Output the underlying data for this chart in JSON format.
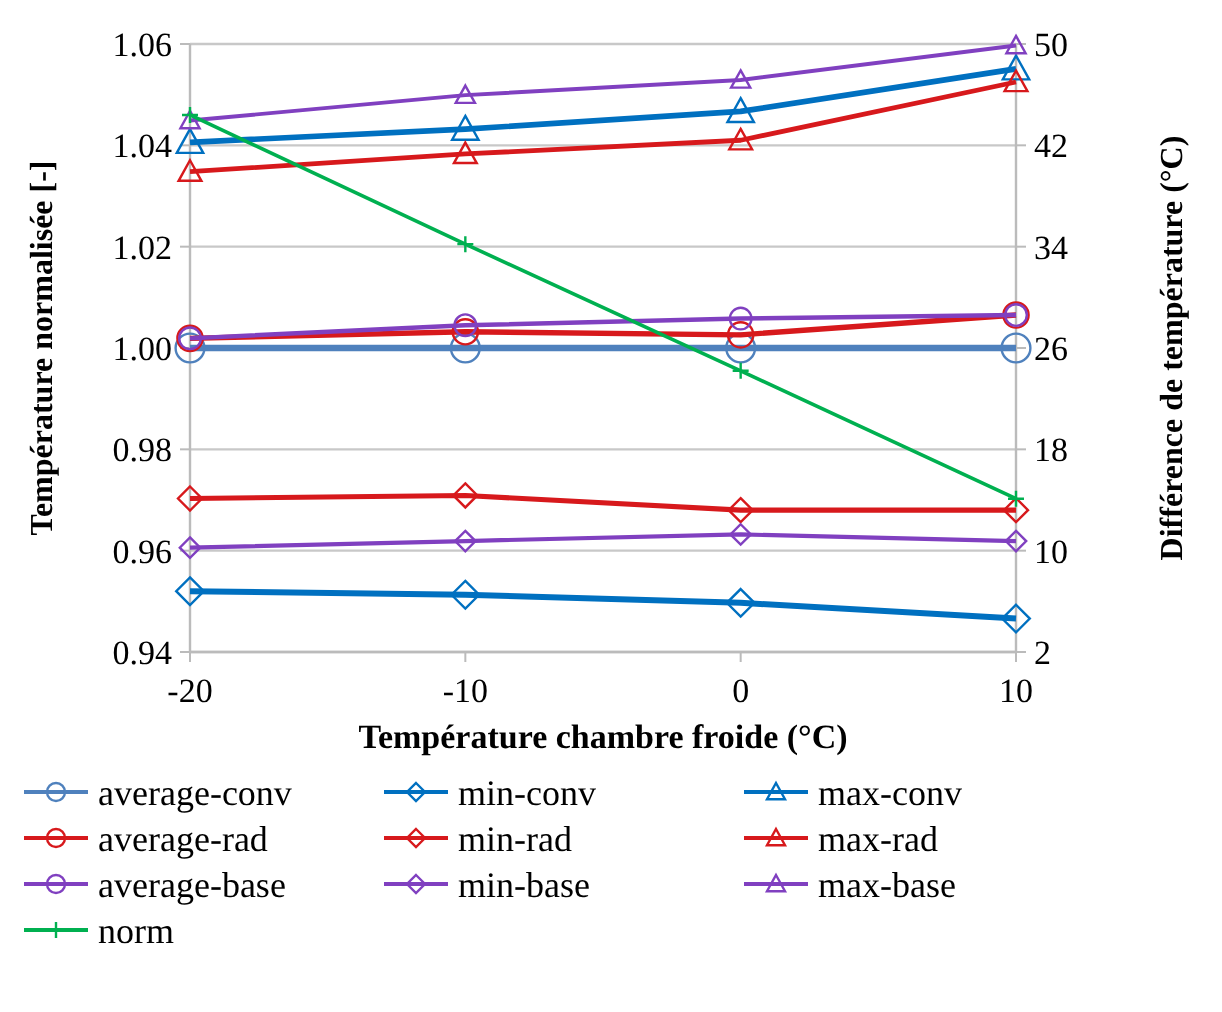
{
  "chart_data": {
    "type": "line",
    "xlabel": "Température chambre froide (°C)",
    "ylabel": "Température normalisée [-]",
    "y2label": "Différence de température (°C)",
    "x": [
      -20,
      -10,
      0,
      10
    ],
    "xlim": [
      -20,
      10
    ],
    "xticks": [
      -20,
      -10,
      0,
      10
    ],
    "ylim": [
      0.94,
      1.06
    ],
    "yticks": [
      {
        "value": 0.94,
        "label": "0.94"
      },
      {
        "value": 0.96,
        "label": "0.96"
      },
      {
        "value": 0.98,
        "label": "0.98"
      },
      {
        "value": 1.0,
        "label": "1.00"
      },
      {
        "value": 1.02,
        "label": "1.02"
      },
      {
        "value": 1.04,
        "label": "1.04"
      },
      {
        "value": 1.06,
        "label": "1.06"
      }
    ],
    "y2lim": [
      2,
      50
    ],
    "y2ticks": [
      2,
      10,
      18,
      26,
      34,
      42,
      50
    ],
    "grid": "y",
    "legend": "bottom",
    "series": [
      {
        "name": "average-conv",
        "color": "#4f81bd",
        "marker": "circle",
        "values": [
          1.0,
          1.0,
          1.0,
          1.0
        ]
      },
      {
        "name": "min-conv",
        "color": "#0070c0",
        "marker": "diamond",
        "values": [
          0.952,
          0.9513,
          0.9497,
          0.9466
        ]
      },
      {
        "name": "max-conv",
        "color": "#0070c0",
        "marker": "triangle",
        "values": [
          1.0406,
          1.0432,
          1.0467,
          1.0551
        ]
      },
      {
        "name": "average-rad",
        "color": "#d7191c",
        "marker": "circle",
        "values": [
          1.0019,
          1.0032,
          1.0026,
          1.0065
        ]
      },
      {
        "name": "min-rad",
        "color": "#d7191c",
        "marker": "diamond",
        "values": [
          0.9703,
          0.9709,
          0.968,
          0.968
        ]
      },
      {
        "name": "max-rad",
        "color": "#d7191c",
        "marker": "triangle",
        "values": [
          1.0348,
          1.0383,
          1.041,
          1.0525
        ]
      },
      {
        "name": "average-base",
        "color": "#8040c0",
        "marker": "circle",
        "values": [
          1.0019,
          1.0045,
          1.0058,
          1.0065
        ]
      },
      {
        "name": "min-base",
        "color": "#8040c0",
        "marker": "diamond",
        "values": [
          0.9606,
          0.9619,
          0.9632,
          0.9619
        ]
      },
      {
        "name": "max-base",
        "color": "#8040c0",
        "marker": "triangle",
        "values": [
          1.0449,
          1.0499,
          1.0529,
          1.0597
        ]
      },
      {
        "name": "norm",
        "color": "#00b050",
        "marker": "cross",
        "axis": "y2",
        "values": [
          44.4,
          34.2,
          24.2,
          14.1
        ]
      }
    ]
  }
}
